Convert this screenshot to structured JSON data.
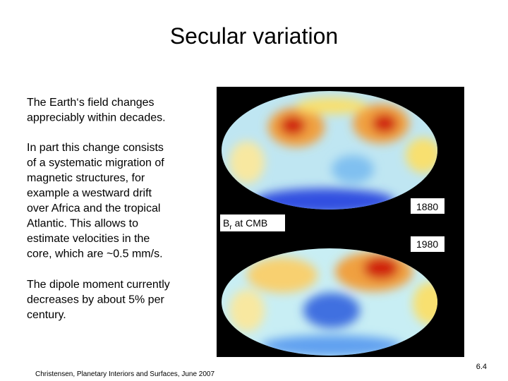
{
  "slide": {
    "title": "Secular variation",
    "paragraphs": [
      [
        "The Earth‘s field changes",
        "appreciably within decades."
      ],
      [
        "In part this change consists",
        "of a systematic migration of",
        "magnetic structures, for",
        "example a westward drift",
        "over Africa and the tropical",
        "Atlantic. This allows to",
        "estimate velocities in the",
        "core, which are ~0.5 mm/s."
      ],
      [
        "The dipole moment currently",
        "decreases by about 5% per",
        "century."
      ]
    ]
  },
  "figure": {
    "label_top": "1880",
    "label_mid": {
      "main": "B",
      "sub": "r",
      "rest": " at CMB"
    },
    "label_bottom": "1980"
  },
  "footer": {
    "citation": "Christensen, Planetary Interiors and Surfaces, June 2007",
    "page": "6.4"
  }
}
